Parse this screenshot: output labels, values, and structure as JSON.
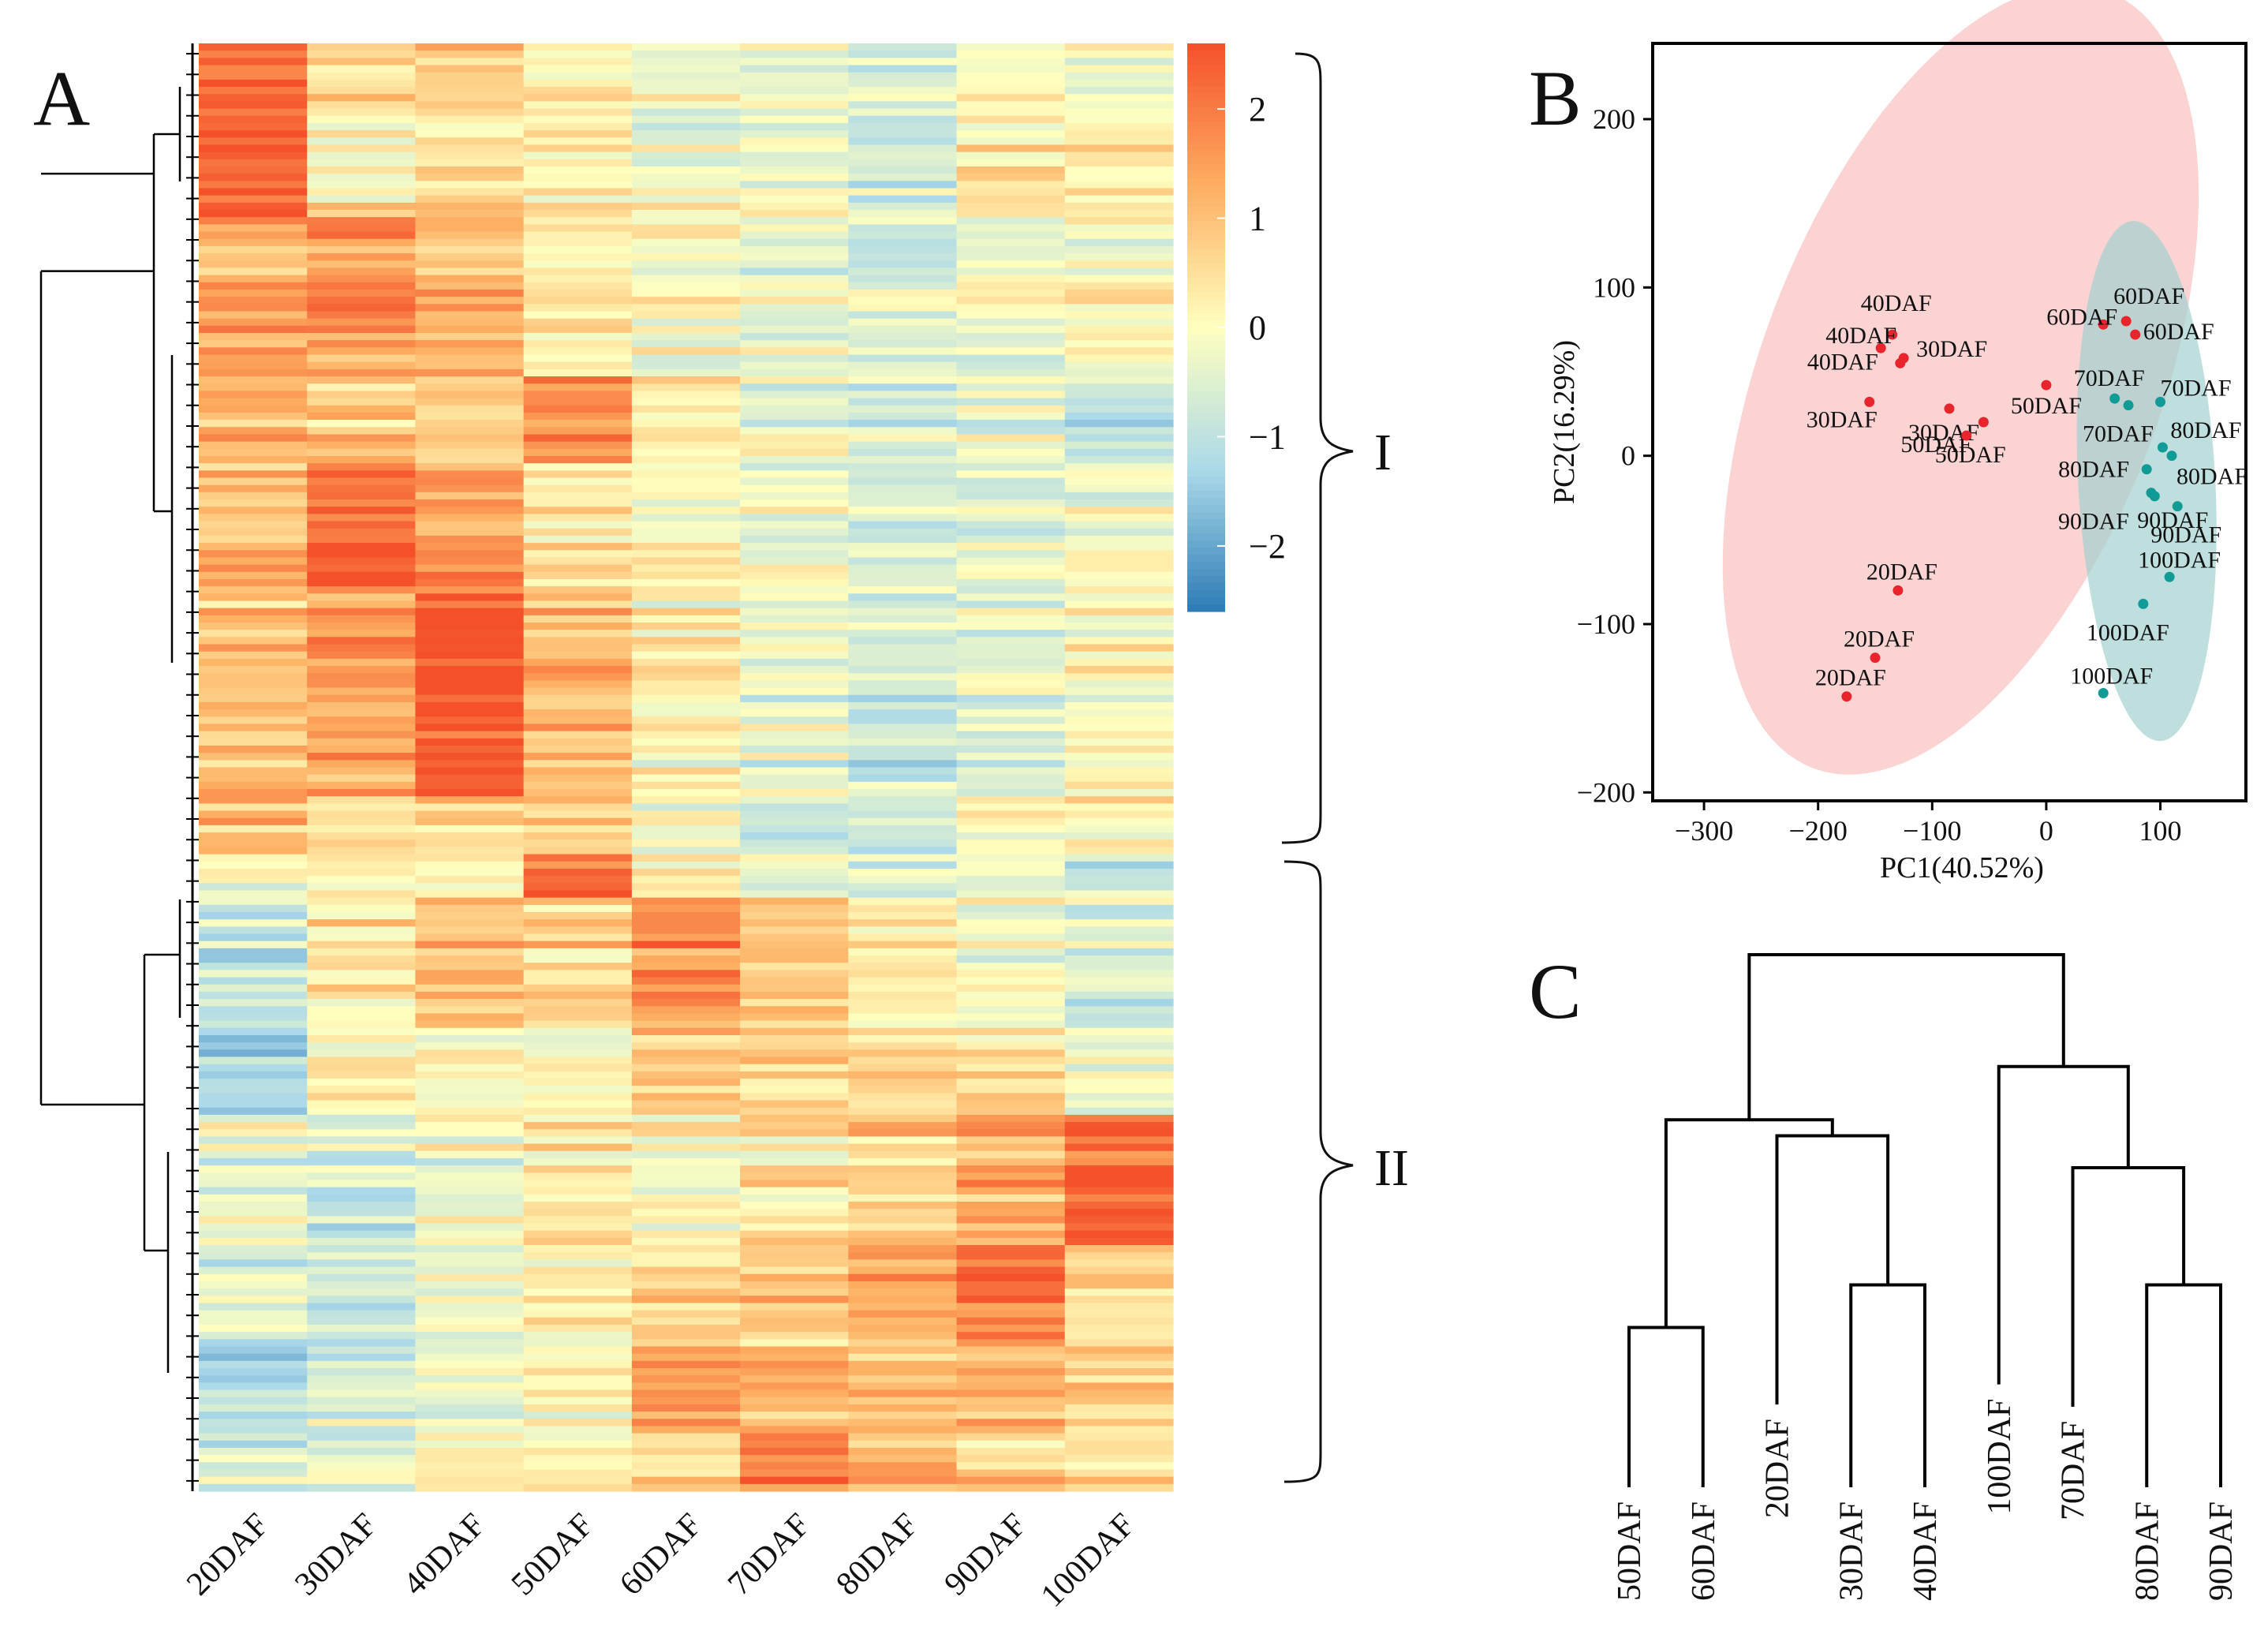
{
  "panels": {
    "A": "A",
    "B": "B",
    "C": "C"
  },
  "chart_data": [
    {
      "type": "heatmap",
      "panel": "A",
      "columns": [
        "20DAF",
        "30DAF",
        "40DAF",
        "50DAF",
        "60DAF",
        "70DAF",
        "80DAF",
        "90DAF",
        "100DAF"
      ],
      "row_count": 200,
      "colorscale": {
        "min": -2.6,
        "max": 2.6,
        "ticks": [
          {
            "value": 2,
            "label": "2"
          },
          {
            "value": 1,
            "label": "1"
          },
          {
            "value": 0,
            "label": "0"
          },
          {
            "value": -1,
            "label": "−1"
          },
          {
            "value": -2,
            "label": "−2"
          }
        ],
        "colors": [
          "#2c7bb6",
          "#abd9e9",
          "#ffffbf",
          "#fdae61",
          "#f4502a"
        ]
      },
      "clusters": [
        {
          "label": "I",
          "row_start": 0,
          "row_end": 110
        },
        {
          "label": "II",
          "row_start": 112,
          "row_end": 200
        }
      ],
      "block_profiles": [
        {
          "rows": [
            0,
            10
          ],
          "values": [
            2.3,
            0.6,
            0.8,
            0.4,
            -0.3,
            -0.3,
            -0.5,
            0.1,
            -0.2
          ]
        },
        {
          "rows": [
            10,
            24
          ],
          "values": [
            2.4,
            0.2,
            0.5,
            0.3,
            -0.3,
            -0.2,
            -0.6,
            0.4,
            0.3
          ]
        },
        {
          "rows": [
            24,
            46
          ],
          "values": [
            1.4,
            1.6,
            1.2,
            0.4,
            0.0,
            -0.3,
            -0.5,
            -0.2,
            0.0
          ]
        },
        {
          "rows": [
            46,
            58
          ],
          "values": [
            1.2,
            0.9,
            0.8,
            1.5,
            0.2,
            -0.3,
            -0.6,
            -0.4,
            -1.0
          ]
        },
        {
          "rows": [
            58,
            76
          ],
          "values": [
            1.2,
            2.3,
            1.6,
            0.5,
            0.1,
            -0.2,
            -0.5,
            -0.4,
            -0.2
          ]
        },
        {
          "rows": [
            76,
            104
          ],
          "values": [
            0.9,
            1.4,
            2.5,
            1.0,
            0.0,
            -0.4,
            -0.8,
            -0.5,
            0.0
          ]
        },
        {
          "rows": [
            104,
            112
          ],
          "values": [
            1.0,
            0.6,
            0.8,
            0.6,
            0.1,
            -0.6,
            -0.6,
            0.0,
            0.2
          ]
        },
        {
          "rows": [
            112,
            118
          ],
          "values": [
            0.0,
            0.3,
            0.5,
            2.5,
            0.3,
            -0.2,
            -0.4,
            0.0,
            -0.6
          ]
        },
        {
          "rows": [
            118,
            136
          ],
          "values": [
            -0.7,
            0.4,
            1.0,
            0.7,
            1.8,
            1.0,
            0.2,
            0.0,
            -0.6
          ]
        },
        {
          "rows": [
            136,
            148
          ],
          "values": [
            -1.4,
            0.2,
            0.3,
            0.2,
            1.0,
            0.7,
            0.6,
            0.6,
            -0.3
          ]
        },
        {
          "rows": [
            148,
            166
          ],
          "values": [
            -0.3,
            -0.7,
            -0.2,
            0.2,
            0.0,
            0.4,
            0.8,
            1.2,
            2.4
          ]
        },
        {
          "rows": [
            166,
            180
          ],
          "values": [
            -0.8,
            -0.8,
            -0.3,
            0.1,
            0.5,
            0.7,
            1.2,
            1.9,
            0.4
          ]
        },
        {
          "rows": [
            180,
            192
          ],
          "values": [
            -1.2,
            -0.6,
            -0.4,
            0.0,
            1.6,
            1.0,
            1.0,
            1.2,
            0.6
          ]
        },
        {
          "rows": [
            192,
            200
          ],
          "values": [
            -0.5,
            -0.4,
            0.2,
            0.4,
            0.6,
            2.0,
            1.4,
            0.8,
            0.4
          ]
        }
      ]
    },
    {
      "type": "scatter",
      "panel": "B",
      "xlabel": "PC1(40.52%)",
      "ylabel": "PC2(16.29%)",
      "xlim": [
        -345,
        175
      ],
      "ylim": [
        -205,
        245
      ],
      "xticks": [
        -300,
        -200,
        -100,
        0,
        100
      ],
      "yticks": [
        200,
        100,
        0,
        -100,
        -200
      ],
      "tick_labels": {
        "x": [
          "−300",
          "−200",
          "−100",
          "0",
          "100"
        ],
        "y": [
          "200",
          "100",
          "0",
          "−100",
          "−200"
        ]
      },
      "groups": [
        {
          "name": "group-red",
          "color": "#e8242c",
          "ellipse_color": "#f7a8a5"
        },
        {
          "name": "group-teal",
          "color": "#119b96",
          "ellipse_color": "#a3d2ce"
        }
      ],
      "ellipses": [
        {
          "group": "group-red",
          "cx": -75,
          "cy": 45,
          "rx": 270,
          "ry": 160,
          "angle": 52
        },
        {
          "group": "group-teal",
          "cx": 88,
          "cy": -15,
          "rx": 155,
          "ry": 60,
          "angle": 95
        }
      ],
      "points": [
        {
          "label": "40DAF",
          "x": -135,
          "y": 72,
          "group": "group-red"
        },
        {
          "label": "40DAF",
          "x": -145,
          "y": 64,
          "group": "group-red"
        },
        {
          "label": "40DAF",
          "x": -128,
          "y": 55,
          "group": "group-red"
        },
        {
          "label": "30DAF",
          "x": -125,
          "y": 58,
          "group": "group-red"
        },
        {
          "label": "30DAF",
          "x": -85,
          "y": 28,
          "group": "group-red"
        },
        {
          "label": "30DAF",
          "x": -155,
          "y": 32,
          "group": "group-red"
        },
        {
          "label": "50DAF",
          "x": -55,
          "y": 20,
          "group": "group-red"
        },
        {
          "label": "50DAF",
          "x": -70,
          "y": 12,
          "group": "group-red"
        },
        {
          "label": "50DAF",
          "x": 0,
          "y": 42,
          "group": "group-red"
        },
        {
          "label": "60DAF",
          "x": 50,
          "y": 78,
          "group": "group-red"
        },
        {
          "label": "60DAF",
          "x": 70,
          "y": 80,
          "group": "group-red"
        },
        {
          "label": "60DAF",
          "x": 78,
          "y": 72,
          "group": "group-red"
        },
        {
          "label": "20DAF",
          "x": -130,
          "y": -80,
          "group": "group-red"
        },
        {
          "label": "20DAF",
          "x": -150,
          "y": -120,
          "group": "group-red"
        },
        {
          "label": "20DAF",
          "x": -175,
          "y": -143,
          "group": "group-red"
        },
        {
          "label": "70DAF",
          "x": 60,
          "y": 34,
          "group": "group-teal"
        },
        {
          "label": "70DAF",
          "x": 100,
          "y": 32,
          "group": "group-teal"
        },
        {
          "label": "70DAF",
          "x": 72,
          "y": 30,
          "group": "group-teal"
        },
        {
          "label": "80DAF",
          "x": 102,
          "y": 5,
          "group": "group-teal"
        },
        {
          "label": "80DAF",
          "x": 110,
          "y": 0,
          "group": "group-teal"
        },
        {
          "label": "80DAF",
          "x": 88,
          "y": -8,
          "group": "group-teal"
        },
        {
          "label": "90DAF",
          "x": 92,
          "y": -22,
          "group": "group-teal"
        },
        {
          "label": "90DAF",
          "x": 95,
          "y": -24,
          "group": "group-teal"
        },
        {
          "label": "90DAF",
          "x": 115,
          "y": -30,
          "group": "group-teal"
        },
        {
          "label": "100DAF",
          "x": 108,
          "y": -72,
          "group": "group-teal"
        },
        {
          "label": "100DAF",
          "x": 85,
          "y": -88,
          "group": "group-teal"
        },
        {
          "label": "100DAF",
          "x": 50,
          "y": -141,
          "group": "group-teal"
        }
      ]
    },
    {
      "type": "dendrogram",
      "panel": "C",
      "leaves": [
        "50DAF",
        "60DAF",
        "20DAF",
        "30DAF",
        "40DAF",
        "100DAF",
        "70DAF",
        "80DAF",
        "90DAF"
      ],
      "merges": [
        {
          "id": "m1",
          "children": [
            "50DAF",
            "60DAF"
          ],
          "height": 0.3
        },
        {
          "id": "m2",
          "children": [
            "30DAF",
            "40DAF"
          ],
          "height": 0.38
        },
        {
          "id": "m3",
          "children": [
            "80DAF",
            "90DAF"
          ],
          "height": 0.38
        },
        {
          "id": "m4",
          "children": [
            "70DAF",
            "m3"
          ],
          "height": 0.6
        },
        {
          "id": "m5",
          "children": [
            "20DAF",
            "m2"
          ],
          "height": 0.66
        },
        {
          "id": "m6",
          "children": [
            "m1",
            "m5"
          ],
          "height": 0.69
        },
        {
          "id": "m7",
          "children": [
            "100DAF",
            "m4"
          ],
          "height": 0.79
        },
        {
          "id": "m8",
          "children": [
            "m6",
            "m7"
          ],
          "height": 1.0
        }
      ]
    }
  ]
}
